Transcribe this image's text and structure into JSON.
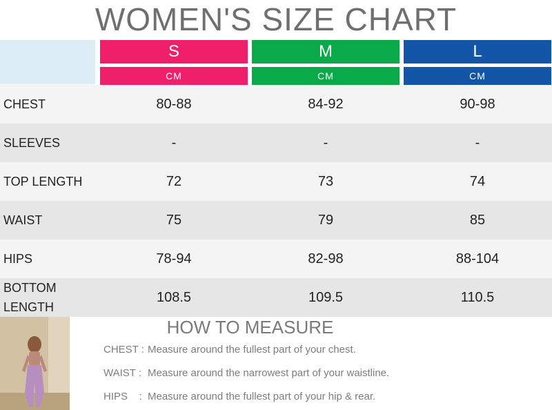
{
  "title": "WOMEN'S SIZE CHART",
  "colors": {
    "S": "#ef1f6a",
    "M": "#0aaa4a",
    "L": "#1355a6",
    "header_blank": "#dcedf6"
  },
  "sizes": [
    {
      "label": "S",
      "unit": "CM"
    },
    {
      "label": "M",
      "unit": "CM"
    },
    {
      "label": "L",
      "unit": "CM"
    }
  ],
  "rows": [
    {
      "label": "CHEST",
      "values": [
        "80-88",
        "84-92",
        "90-98"
      ]
    },
    {
      "label": "SLEEVES",
      "values": [
        "-",
        "-",
        "-"
      ]
    },
    {
      "label": "TOP LENGTH",
      "values": [
        "72",
        "73",
        "74"
      ]
    },
    {
      "label": "WAIST",
      "values": [
        "75",
        "79",
        "85"
      ]
    },
    {
      "label": "HIPS",
      "values": [
        "78-94",
        "82-98",
        "88-104"
      ]
    },
    {
      "label": "BOTTOM LENGTH",
      "values": [
        "108.5",
        "109.5",
        "110.5"
      ]
    }
  ],
  "howto": {
    "title": "HOW TO MEASURE",
    "items": [
      {
        "key": "CHEST :",
        "text": "Measure around the fullest part of your chest."
      },
      {
        "key": "WAIST :",
        "text": "Measure around the narrowest part of your waistline."
      },
      {
        "key": "HIPS    :",
        "text": "Measure around the fullest part of your hip & rear."
      }
    ]
  }
}
